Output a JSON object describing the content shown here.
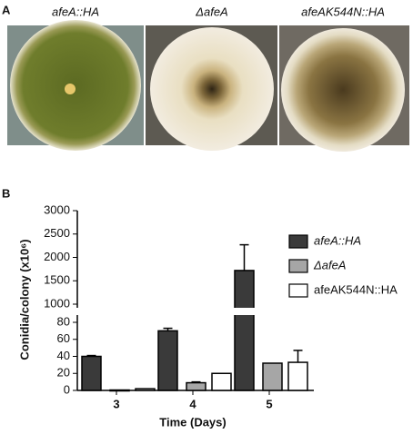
{
  "panel_a": {
    "label": "A",
    "strains": [
      "afeA::HA",
      "ΔafeA",
      "afeAK544N::HA"
    ]
  },
  "chart_data": {
    "type": "bar",
    "panel_label": "B",
    "y_label": "Conidia/colony (x10⁶)",
    "x_label": "Time  (Days)",
    "categories": [
      "3",
      "4",
      "5"
    ],
    "axis_segments": [
      {
        "ylim": [
          0,
          80
        ],
        "yticks": [
          0,
          20,
          40,
          60,
          80
        ]
      },
      {
        "ylim": [
          1000,
          3000
        ],
        "yticks": [
          1000,
          1500,
          2000,
          2500,
          3000
        ]
      }
    ],
    "series": [
      {
        "name": "afeA::HA",
        "color": "#3a3a3a",
        "values": [
          40,
          70,
          1720
        ],
        "errors": [
          1,
          3,
          550
        ]
      },
      {
        "name": "ΔafeA",
        "color": "#a6a6a6",
        "values": [
          0.5,
          9,
          32
        ],
        "errors": [
          0,
          1,
          0
        ]
      },
      {
        "name": "afeAK544N::HA",
        "color": "#ffffff",
        "values": [
          2,
          20,
          33
        ],
        "errors": [
          0,
          0,
          14
        ]
      }
    ],
    "legend": "right"
  }
}
